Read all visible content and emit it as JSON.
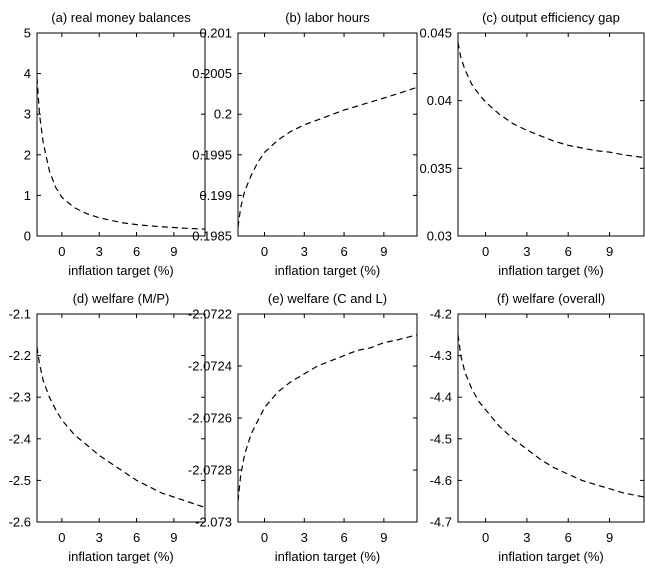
{
  "chart_data": [
    {
      "type": "line",
      "title": "(a) real money balances",
      "xlabel": "inflation target (%)",
      "ylabel": "",
      "xlim": [
        -2,
        11.5
      ],
      "ylim": [
        0,
        5
      ],
      "xticks": [
        0,
        3,
        6,
        9
      ],
      "yticks": [
        0,
        1,
        2,
        3,
        4,
        5
      ],
      "ytick_labels": [
        "0",
        "1",
        "2",
        "3",
        "4",
        "5"
      ],
      "grid": false,
      "series": [
        {
          "x": [
            -2,
            -1.8,
            -1.5,
            -1,
            -0.5,
            0,
            1,
            2,
            3,
            4,
            5,
            6,
            7,
            8,
            9,
            10,
            11.5
          ],
          "values": [
            3.9,
            3.0,
            2.3,
            1.6,
            1.2,
            0.95,
            0.7,
            0.55,
            0.45,
            0.38,
            0.32,
            0.28,
            0.25,
            0.23,
            0.21,
            0.19,
            0.17
          ]
        }
      ]
    },
    {
      "type": "line",
      "title": "(b) labor hours",
      "xlabel": "inflation target (%)",
      "ylabel": "",
      "xlim": [
        -2,
        11.5
      ],
      "ylim": [
        0.1985,
        0.201
      ],
      "xticks": [
        0,
        3,
        6,
        9
      ],
      "yticks": [
        0.1985,
        0.199,
        0.1995,
        0.2,
        0.2005,
        0.201
      ],
      "ytick_labels": [
        "0.1985",
        "0.199",
        "0.1995",
        "0.2",
        "0.2005",
        "0.201"
      ],
      "grid": false,
      "series": [
        {
          "x": [
            -2,
            -1.8,
            -1.5,
            -1,
            -0.5,
            0,
            1,
            2,
            3,
            4,
            5,
            6,
            7,
            8,
            9,
            10,
            11.5
          ],
          "values": [
            0.19861,
            0.19885,
            0.19905,
            0.19925,
            0.19941,
            0.19953,
            0.19968,
            0.19979,
            0.19987,
            0.19993,
            0.19999,
            0.20005,
            0.2001,
            0.20015,
            0.2002,
            0.20025,
            0.20033
          ]
        }
      ]
    },
    {
      "type": "line",
      "title": "(c) output efficiency gap",
      "xlabel": "inflation target (%)",
      "ylabel": "",
      "xlim": [
        -2,
        11.5
      ],
      "ylim": [
        0.03,
        0.045
      ],
      "xticks": [
        0,
        3,
        6,
        9
      ],
      "yticks": [
        0.03,
        0.035,
        0.04,
        0.045
      ],
      "ytick_labels": [
        "0.03",
        "0.035",
        "0.04",
        "0.045"
      ],
      "grid": false,
      "series": [
        {
          "x": [
            -2,
            -1.8,
            -1.5,
            -1,
            -0.5,
            0,
            1,
            2,
            3,
            4,
            5,
            6,
            7,
            8,
            9,
            10,
            11.5
          ],
          "values": [
            0.0443,
            0.0432,
            0.0423,
            0.0412,
            0.0405,
            0.0399,
            0.039,
            0.0383,
            0.0378,
            0.0374,
            0.037,
            0.0367,
            0.0365,
            0.0363,
            0.0362,
            0.036,
            0.0358
          ]
        }
      ]
    },
    {
      "type": "line",
      "title": "(d) welfare (M/P)",
      "xlabel": "inflation target (%)",
      "ylabel": "",
      "xlim": [
        -2,
        11.5
      ],
      "ylim": [
        -2.6,
        -2.1
      ],
      "xticks": [
        0,
        3,
        6,
        9
      ],
      "yticks": [
        -2.6,
        -2.5,
        -2.4,
        -2.3,
        -2.2,
        -2.1
      ],
      "ytick_labels": [
        "-2.6",
        "-2.5",
        "-2.4",
        "-2.3",
        "-2.2",
        "-2.1"
      ],
      "grid": false,
      "series": [
        {
          "x": [
            -2,
            -1.8,
            -1.5,
            -1,
            -0.5,
            0,
            1,
            2,
            3,
            4,
            5,
            6,
            7,
            8,
            9,
            10,
            11.5
          ],
          "values": [
            -2.18,
            -2.22,
            -2.26,
            -2.3,
            -2.33,
            -2.355,
            -2.39,
            -2.415,
            -2.44,
            -2.46,
            -2.48,
            -2.5,
            -2.515,
            -2.53,
            -2.54,
            -2.55,
            -2.565
          ]
        }
      ]
    },
    {
      "type": "line",
      "title": "(e) welfare (C and L)",
      "xlabel": "inflation target (%)",
      "ylabel": "",
      "xlim": [
        -2,
        11.5
      ],
      "ylim": [
        -2.073,
        -2.0722
      ],
      "xticks": [
        0,
        3,
        6,
        9
      ],
      "yticks": [
        -2.073,
        -2.0728,
        -2.0726,
        -2.0724,
        -2.0722
      ],
      "ytick_labels": [
        "-2.073",
        "-2.0728",
        "-2.0726",
        "-2.0724",
        "-2.0722"
      ],
      "grid": false,
      "series": [
        {
          "x": [
            -2,
            -1.8,
            -1.5,
            -1,
            -0.5,
            0,
            1,
            2,
            3,
            4,
            5,
            6,
            7,
            8,
            9,
            10,
            11.5
          ],
          "values": [
            -2.07292,
            -2.07282,
            -2.07274,
            -2.07266,
            -2.07261,
            -2.07256,
            -2.0725,
            -2.07246,
            -2.07243,
            -2.0724,
            -2.07238,
            -2.07236,
            -2.07234,
            -2.07233,
            -2.07231,
            -2.0723,
            -2.07228
          ]
        }
      ]
    },
    {
      "type": "line",
      "title": "(f) welfare (overall)",
      "xlabel": "inflation target (%)",
      "ylabel": "",
      "xlim": [
        -2,
        11.5
      ],
      "ylim": [
        -4.7,
        -4.2
      ],
      "xticks": [
        0,
        3,
        6,
        9
      ],
      "yticks": [
        -4.7,
        -4.6,
        -4.5,
        -4.4,
        -4.3,
        -4.2
      ],
      "ytick_labels": [
        "-4.7",
        "-4.6",
        "-4.5",
        "-4.4",
        "-4.3",
        "-4.2"
      ],
      "grid": false,
      "series": [
        {
          "x": [
            -2,
            -1.8,
            -1.5,
            -1,
            -0.5,
            0,
            1,
            2,
            3,
            4,
            5,
            6,
            7,
            8,
            9,
            10,
            11.5
          ],
          "values": [
            -4.25,
            -4.3,
            -4.34,
            -4.38,
            -4.41,
            -4.43,
            -4.47,
            -4.5,
            -4.525,
            -4.55,
            -4.57,
            -4.585,
            -4.6,
            -4.61,
            -4.62,
            -4.63,
            -4.64
          ]
        }
      ]
    }
  ]
}
